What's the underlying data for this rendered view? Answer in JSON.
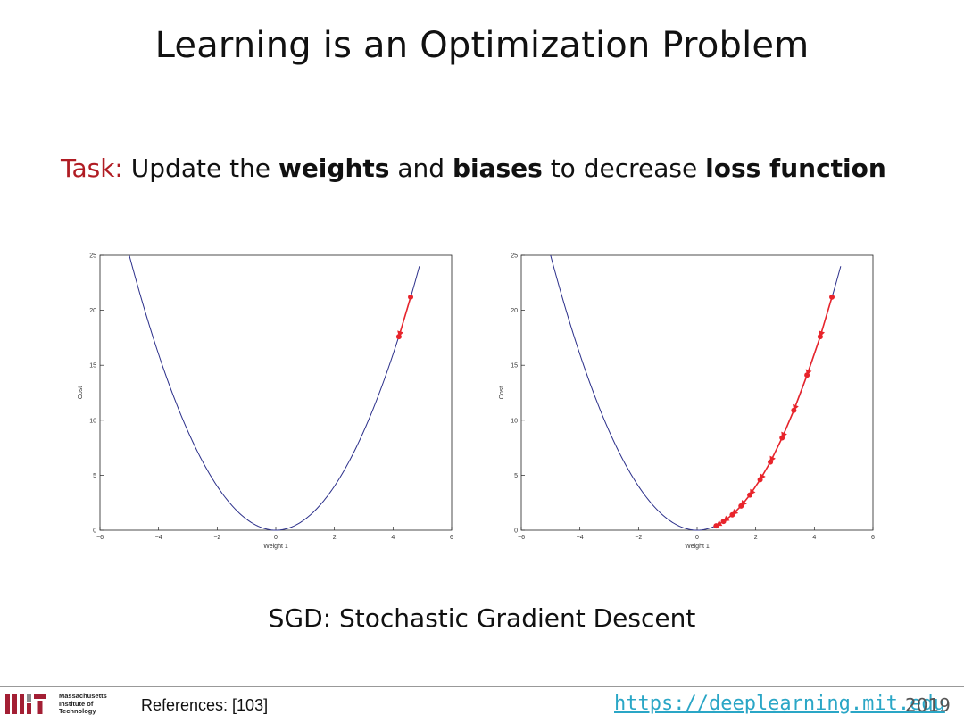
{
  "slide": {
    "title": "Learning is an Optimization Problem",
    "task": {
      "label": "Task:",
      "parts": [
        "Update the",
        "weights",
        "and",
        "biases",
        "to decrease",
        "loss function"
      ]
    },
    "caption": "SGD: Stochastic Gradient Descent"
  },
  "footer": {
    "logo_text": [
      "Massachusetts",
      "Institute of",
      "Technology"
    ],
    "references": "References: [103]",
    "url": "https://deeplearning.mit.edu",
    "year": "2019"
  },
  "colors": {
    "task_label": "#b01c23",
    "curve": "#2b2f8a",
    "steps": "#e8242b",
    "url": "#2aa6c6"
  },
  "chart_data": [
    {
      "type": "line",
      "xlabel": "Weight 1",
      "ylabel": "Cost",
      "xlim": [
        -6,
        6
      ],
      "ylim": [
        0,
        25
      ],
      "xticks": [
        "−6",
        "−4",
        "−2",
        "0",
        "2",
        "4",
        "6"
      ],
      "yticks": [
        "0",
        "5",
        "10",
        "15",
        "20",
        "25"
      ],
      "curve": {
        "function": "y = x^2",
        "x_range": [
          -5.0,
          4.9
        ]
      },
      "steps": {
        "x": [
          4.6,
          4.2
        ],
        "y": [
          21.2,
          17.6
        ]
      }
    },
    {
      "type": "line",
      "xlabel": "Weight 1",
      "ylabel": "Cost",
      "xlim": [
        -6,
        6
      ],
      "ylim": [
        0,
        25
      ],
      "xticks": [
        "−6",
        "−4",
        "−2",
        "0",
        "2",
        "4",
        "6"
      ],
      "yticks": [
        "0",
        "5",
        "10",
        "15",
        "20",
        "25"
      ],
      "curve": {
        "function": "y = x^2",
        "x_range": [
          -5.0,
          4.9
        ]
      },
      "steps": {
        "x": [
          4.6,
          4.2,
          3.75,
          3.3,
          2.9,
          2.5,
          2.15,
          1.8,
          1.5,
          1.2,
          0.9,
          0.65
        ],
        "y": [
          21.2,
          17.6,
          14.1,
          10.9,
          8.4,
          6.2,
          4.6,
          3.2,
          2.2,
          1.4,
          0.8,
          0.4
        ]
      }
    }
  ]
}
